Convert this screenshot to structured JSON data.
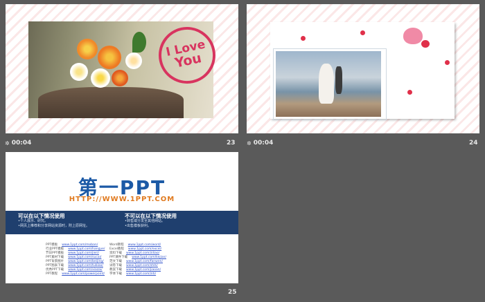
{
  "slides": [
    {
      "number": "23",
      "timing": "00:04",
      "stamp": {
        "line1": "I Love",
        "line2": "You"
      }
    },
    {
      "number": "24",
      "timing": "00:04"
    },
    {
      "number": "25",
      "logo": {
        "main": "第一PPT",
        "url": "HTTP://WWW.1PPT.COM"
      },
      "band": {
        "left": {
          "heading": "可以在以下情况使用",
          "lines": [
            "•个人展示、研究。",
            "•网页上推荐和分享网站资源时，附上原网址。"
          ]
        },
        "right": {
          "heading": "不可以在以下情况使用",
          "lines": [
            "•转售或分发至其他网站。",
            "•出售模板获利。"
          ]
        }
      },
      "links_left": [
        {
          "label": "PPT模板",
          "url": "www.1ppt.com/moban/"
        },
        {
          "label": "行业PPT模板",
          "url": "www.1ppt.com/hangye/"
        },
        {
          "label": "节日PPT模板",
          "url": "www.1ppt.com/jieri/"
        },
        {
          "label": "PPT素材下载",
          "url": "www.1ppt.com/sucai/"
        },
        {
          "label": "PPT背景图片",
          "url": "www.1ppt.com/beijing/"
        },
        {
          "label": "PPT图表下载",
          "url": "www.1ppt.com/tubiao/"
        },
        {
          "label": "优秀PPT下载",
          "url": "www.1ppt.com/xiazai/"
        },
        {
          "label": "PPT教程",
          "url": "www.1ppt.com/powerpoint/"
        }
      ],
      "links_right": [
        {
          "label": "Word教程",
          "url": "www.1ppt.com/word/"
        },
        {
          "label": "Excel教程",
          "url": "www.1ppt.com/excel/"
        },
        {
          "label": "资料下载",
          "url": "www.1ppt.com/ziliao/"
        },
        {
          "label": "PPT课件下载",
          "url": "www.1ppt.com/kejian/"
        },
        {
          "label": "范文下载",
          "url": "www.1ppt.com/fanwen/"
        },
        {
          "label": "试卷下载",
          "url": "www.1ppt.com/shiti/"
        },
        {
          "label": "教案下载",
          "url": "www.1ppt.com/jiaoan/"
        },
        {
          "label": "字体下载",
          "url": "www.1ppt.com/ziti/"
        }
      ]
    }
  ],
  "colors": {
    "background": "#5a5a5a",
    "accent_blue": "#1f3f6e",
    "logo_blue": "#1c5aa6",
    "logo_orange": "#e07a1f",
    "stamp_red": "#d8345f"
  },
  "icons": {
    "timing": "star-icon"
  }
}
